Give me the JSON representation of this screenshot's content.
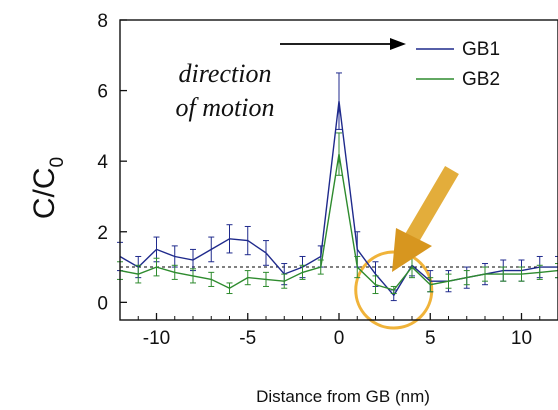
{
  "chart_data": {
    "type": "line",
    "xlabel": "Distance from GB (nm)",
    "ylabel": "C/C",
    "ylabel_sub": "0",
    "xlim": [
      -12,
      12
    ],
    "ylim": [
      -0.5,
      8
    ],
    "xticks": [
      -10,
      -5,
      0,
      5,
      10
    ],
    "xtick_labels": [
      "-10",
      "-5",
      "0",
      "5",
      "10"
    ],
    "yticks": [
      0,
      2,
      4,
      6,
      8
    ],
    "ytick_labels": [
      "0",
      "2",
      "4",
      "6",
      "8"
    ],
    "legend": {
      "placement": "top-right"
    },
    "reference_line": {
      "y": 1.0,
      "style": "dashed"
    },
    "annotations": [
      {
        "text_line1": "direction",
        "text_line2": "of motion",
        "arrow": "right"
      }
    ],
    "highlight": {
      "x": 3.0,
      "y": 0.35,
      "color": "#F0B33A"
    },
    "series": [
      {
        "name": "GB1",
        "color": "#1F2A8C",
        "x": [
          -12,
          -11,
          -10,
          -9,
          -8,
          -7,
          -6,
          -5,
          -4,
          -3,
          -2,
          -1,
          0,
          1,
          2,
          3,
          4,
          5,
          6,
          7,
          8,
          9,
          10,
          11,
          12
        ],
        "y": [
          1.3,
          1.0,
          1.5,
          1.3,
          1.2,
          1.5,
          1.8,
          1.75,
          1.4,
          0.8,
          1.0,
          1.3,
          5.7,
          1.5,
          0.8,
          0.2,
          1.05,
          0.6,
          0.6,
          0.7,
          0.8,
          0.9,
          0.9,
          1.0,
          1.0
        ],
        "err": [
          0.4,
          0.3,
          0.35,
          0.3,
          0.3,
          0.35,
          0.4,
          0.4,
          0.35,
          0.3,
          0.3,
          0.3,
          0.8,
          0.5,
          0.35,
          0.15,
          0.3,
          0.3,
          0.3,
          0.3,
          0.3,
          0.3,
          0.3,
          0.3,
          0.3
        ]
      },
      {
        "name": "GB2",
        "color": "#2E8B2E",
        "x": [
          -12,
          -11,
          -10,
          -9,
          -8,
          -7,
          -6,
          -5,
          -4,
          -3,
          -2,
          -1,
          0,
          1,
          2,
          3,
          4,
          5,
          6,
          7,
          8,
          9,
          10,
          11,
          12
        ],
        "y": [
          0.9,
          0.8,
          1.0,
          0.85,
          0.75,
          0.65,
          0.4,
          0.7,
          0.65,
          0.6,
          0.85,
          1.0,
          4.2,
          1.0,
          0.5,
          0.35,
          1.0,
          0.5,
          0.6,
          0.7,
          0.8,
          0.8,
          0.8,
          0.85,
          0.9
        ],
        "err": [
          0.25,
          0.25,
          0.25,
          0.2,
          0.2,
          0.2,
          0.15,
          0.2,
          0.2,
          0.2,
          0.2,
          0.2,
          0.6,
          0.3,
          0.25,
          0.1,
          0.3,
          0.2,
          0.2,
          0.2,
          0.2,
          0.2,
          0.2,
          0.2,
          0.2
        ]
      }
    ]
  }
}
